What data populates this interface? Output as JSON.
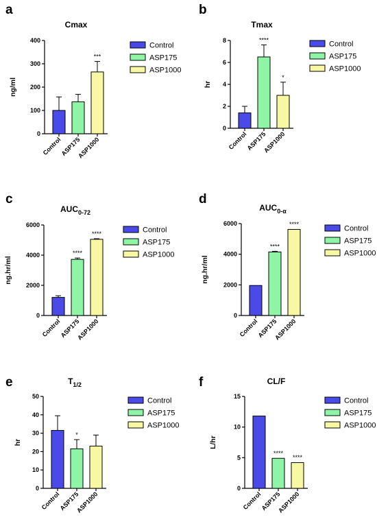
{
  "colors": {
    "Control": "#4a4ae8",
    "ASP175": "#8ff5a6",
    "ASP1000": "#f8f8a4"
  },
  "chart_data": [
    {
      "panel": "a",
      "type": "bar",
      "title": "Cmax",
      "title_sub": "",
      "ylabel": "ng/ml",
      "ylim": [
        0,
        400
      ],
      "yticks": [
        0,
        100,
        200,
        300,
        400
      ],
      "categories": [
        "Control",
        "ASP175",
        "ASP1000"
      ],
      "values": [
        100,
        137,
        265
      ],
      "errors": [
        58,
        32,
        45
      ],
      "significance": [
        "",
        "",
        "***"
      ],
      "legend": [
        "Control",
        "ASP175",
        "ASP1000"
      ]
    },
    {
      "panel": "b",
      "type": "bar",
      "title": "Tmax",
      "title_sub": "",
      "ylabel": "hr",
      "ylim": [
        0,
        8
      ],
      "yticks": [
        0,
        2,
        4,
        6,
        8
      ],
      "categories": [
        "Control",
        "ASP175",
        "ASP1000"
      ],
      "values": [
        1.4,
        6.5,
        3.0
      ],
      "errors": [
        0.6,
        1.1,
        1.2
      ],
      "significance": [
        "",
        "****",
        "*"
      ],
      "legend": [
        "Control",
        "ASP175",
        "ASP1000"
      ]
    },
    {
      "panel": "c",
      "type": "bar",
      "title": "AUC",
      "title_sub": "0-72",
      "ylabel": "ng.hr/ml",
      "ylim": [
        0,
        6000
      ],
      "yticks": [
        0,
        2000,
        4000,
        6000
      ],
      "categories": [
        "Control",
        "ASP175",
        "ASP1000"
      ],
      "values": [
        1200,
        3720,
        5050
      ],
      "errors": [
        110,
        90,
        40
      ],
      "significance": [
        "",
        "****",
        "****"
      ],
      "legend": [
        "Control",
        "ASP175",
        "ASP1000"
      ]
    },
    {
      "panel": "d",
      "type": "bar",
      "title": "AUC",
      "title_sub": "0-α",
      "ylabel": "ng.hr/ml",
      "ylim": [
        0,
        6000
      ],
      "yticks": [
        0,
        2000,
        4000,
        6000
      ],
      "categories": [
        "Control",
        "ASP175",
        "ASP1000"
      ],
      "values": [
        1960,
        4150,
        5620
      ],
      "errors": [
        25,
        40,
        30
      ],
      "significance": [
        "",
        "****",
        "****"
      ],
      "legend": [
        "Control",
        "ASP175",
        "ASP1000"
      ]
    },
    {
      "panel": "e",
      "type": "bar",
      "title": "T",
      "title_sub": "1/2",
      "ylabel": "hr",
      "ylim": [
        0,
        50
      ],
      "yticks": [
        0,
        10,
        20,
        30,
        40,
        50
      ],
      "categories": [
        "Control",
        "ASP175",
        "ASP1000"
      ],
      "values": [
        31.5,
        21.5,
        23.0
      ],
      "errors": [
        8.0,
        5.0,
        6.0
      ],
      "significance": [
        "",
        "*",
        ""
      ],
      "legend": [
        "Control",
        "ASP175",
        "ASP1000"
      ]
    },
    {
      "panel": "f",
      "type": "bar",
      "title": "CL/F",
      "title_sub": "",
      "ylabel": "L/hr",
      "ylim": [
        0,
        15
      ],
      "yticks": [
        0,
        5,
        10,
        15
      ],
      "categories": [
        "Control",
        "ASP175",
        "ASP1000"
      ],
      "values": [
        11.8,
        4.9,
        4.2
      ],
      "errors": [
        0.05,
        0.05,
        0.05
      ],
      "significance": [
        "",
        "****",
        "****"
      ],
      "legend": [
        "Control",
        "ASP175",
        "ASP1000"
      ]
    }
  ]
}
